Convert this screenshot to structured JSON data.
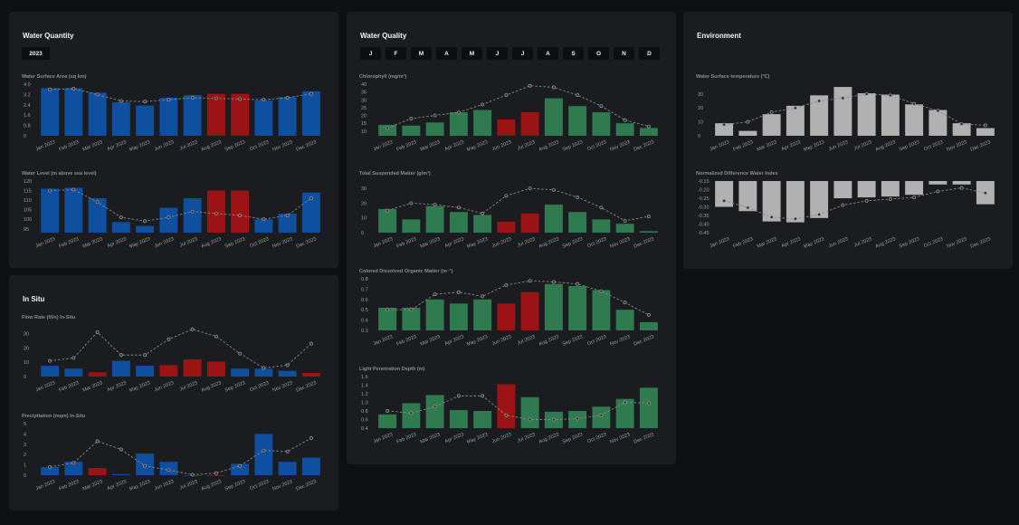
{
  "panels": {
    "water_quantity": {
      "title": "Water Quantity",
      "year": "2023"
    },
    "water_quality": {
      "title": "Water Quality",
      "months": [
        "J",
        "F",
        "M",
        "A",
        "M",
        "J",
        "J",
        "A",
        "S",
        "O",
        "N",
        "D"
      ]
    },
    "environment": {
      "title": "Environment"
    },
    "in_situ": {
      "title": "In Situ"
    }
  },
  "colors": {
    "blue": "#0e4fa0",
    "red": "#9b1414",
    "green": "#2f7b4f",
    "gray": "#b1b1b1",
    "line": "#8a8a8a"
  },
  "chart_data": [
    {
      "id": "surface_area",
      "type": "bar",
      "title": "Water Surface Area (sq km)",
      "categories": [
        "Jan 2023",
        "Feb 2023",
        "Mar 2023",
        "Apr 2023",
        "May 2023",
        "Jun 2023",
        "Jul 2023",
        "Aug 2023",
        "Sep 2023",
        "Oct 2023",
        "Nov 2023",
        "Dec 2023"
      ],
      "values": [
        3.7,
        3.7,
        3.35,
        2.6,
        2.35,
        2.95,
        3.15,
        3.25,
        3.25,
        2.75,
        3.0,
        3.45
      ],
      "trend": [
        3.6,
        3.65,
        3.2,
        2.7,
        2.65,
        2.8,
        2.95,
        2.9,
        2.85,
        2.8,
        2.95,
        3.25
      ],
      "highlight": [
        7,
        8
      ],
      "yticks": [
        0,
        0.8,
        1.6,
        2.4,
        3.2,
        4.0
      ],
      "ytick_labels": [
        "0",
        "0.8",
        "1.6",
        "2.4",
        "3.2",
        "4.0"
      ],
      "ylim": [
        0,
        4.0
      ]
    },
    {
      "id": "water_level",
      "type": "bar",
      "title": "Water Level (m above sea level)",
      "categories": [
        "Jan 2023",
        "Feb 2023",
        "Mar 2023",
        "Apr 2023",
        "May 2023",
        "Jun 2023",
        "Jul 2023",
        "Aug 2023",
        "Sep 2023",
        "Oct 2023",
        "Nov 2023",
        "Dec 2023"
      ],
      "values": [
        116,
        116.5,
        111,
        98.5,
        96.5,
        106,
        111,
        115,
        115,
        100,
        103,
        114
      ],
      "trend": [
        115,
        115.5,
        109,
        101,
        99,
        101,
        104,
        103,
        102,
        100,
        102,
        111
      ],
      "highlight": [
        7,
        8
      ],
      "yticks": [
        95,
        100,
        105,
        110,
        115,
        120
      ],
      "ytick_labels": [
        "95",
        "100",
        "105",
        "110",
        "115",
        "120"
      ],
      "ylim": [
        93,
        120
      ]
    },
    {
      "id": "chlorophyll",
      "type": "bar",
      "title": "Chlorophyll (mg/m³)",
      "categories": [
        "Jan 2023",
        "Feb 2023",
        "Mar 2023",
        "Apr 2023",
        "May 2023",
        "Jun 2023",
        "Jul 2023",
        "Aug 2023",
        "Sep 2023",
        "Oct 2023",
        "Nov 2023",
        "Dec 2023"
      ],
      "values": [
        14,
        13.5,
        15.5,
        22,
        23.5,
        17.5,
        22,
        31,
        26,
        22,
        15,
        12
      ],
      "trend": [
        12,
        18,
        20,
        22,
        27,
        33,
        39,
        38,
        33,
        26,
        17,
        13
      ],
      "highlight": [
        5,
        6
      ],
      "yticks": [
        10,
        15,
        20,
        25,
        30,
        35,
        40
      ],
      "ytick_labels": [
        "10",
        "15",
        "20",
        "25",
        "30",
        "35",
        "40"
      ],
      "ylim": [
        7,
        40
      ]
    },
    {
      "id": "tsm",
      "type": "bar",
      "title": "Total Suspended Matter (g/m³)",
      "categories": [
        "Jan 2023",
        "Feb 2023",
        "Mar 2023",
        "Apr 2023",
        "May 2023",
        "Jun 2023",
        "Jul 2023",
        "Aug 2023",
        "Sep 2023",
        "Oct 2023",
        "Nov 2023",
        "Dec 2023"
      ],
      "values": [
        16,
        9,
        18,
        14,
        12,
        7.5,
        13,
        19,
        14,
        9,
        6,
        1
      ],
      "trend": [
        15,
        20,
        19,
        17,
        13,
        25,
        30,
        29,
        24,
        17,
        8,
        11
      ],
      "highlight": [
        5,
        6
      ],
      "yticks": [
        0,
        10,
        20,
        30
      ],
      "ytick_labels": [
        "0",
        "10",
        "20",
        "30"
      ],
      "ylim": [
        0,
        35
      ]
    },
    {
      "id": "cdom",
      "type": "bar",
      "title": "Colored Dissolved Organic Matter (m⁻¹)",
      "categories": [
        "Jan 2023",
        "Feb 2023",
        "Mar 2023",
        "Apr 2023",
        "May 2023",
        "Jun 2023",
        "Jul 2023",
        "Aug 2023",
        "Sep 2023",
        "Oct 2023",
        "Nov 2023",
        "Dec 2023"
      ],
      "values": [
        0.52,
        0.52,
        0.6,
        0.56,
        0.6,
        0.56,
        0.67,
        0.75,
        0.73,
        0.69,
        0.5,
        0.38
      ],
      "trend": [
        0.5,
        0.5,
        0.65,
        0.67,
        0.63,
        0.74,
        0.78,
        0.77,
        0.75,
        0.68,
        0.57,
        0.45
      ],
      "highlight": [
        5,
        6
      ],
      "yticks": [
        0.3,
        0.4,
        0.5,
        0.6,
        0.7,
        0.8
      ],
      "ytick_labels": [
        "0.3",
        "0.4",
        "0.5",
        "0.6",
        "0.7",
        "0.8"
      ],
      "ylim": [
        0.3,
        0.8
      ]
    },
    {
      "id": "light_depth",
      "type": "bar",
      "title": "Light Penetration Depth (m)",
      "categories": [
        "Jan 2023",
        "Feb 2023",
        "Mar 2023",
        "Apr 2023",
        "May 2023",
        "Jun 2023",
        "Jul 2023",
        "Aug 2023",
        "Sep 2023",
        "Oct 2023",
        "Nov 2023",
        "Dec 2023"
      ],
      "values": [
        0.72,
        0.98,
        1.17,
        0.82,
        0.8,
        1.42,
        1.12,
        0.78,
        0.8,
        0.9,
        1.08,
        1.34
      ],
      "trend": [
        0.8,
        0.75,
        0.9,
        1.15,
        1.15,
        0.7,
        0.6,
        0.6,
        0.62,
        0.7,
        1.0,
        0.98
      ],
      "highlight": [
        5
      ],
      "yticks": [
        0.4,
        0.6,
        0.8,
        1.0,
        1.2,
        1.4,
        1.6
      ],
      "ytick_labels": [
        "0.4",
        "0.6",
        "0.8",
        "1.0",
        "1.2",
        "1.4",
        "1.6"
      ],
      "ylim": [
        0.4,
        1.6
      ]
    },
    {
      "id": "surface_temp",
      "type": "bar",
      "title": "Water Surface temperature (°C)",
      "categories": [
        "Jan 2023",
        "Feb 2023",
        "Mar 2023",
        "Apr 2023",
        "May 2023",
        "Jun 2023",
        "Jul 2023",
        "Aug 2023",
        "Sep 2023",
        "Oct 2023",
        "Nov 2023",
        "Dec 2023"
      ],
      "values": [
        9,
        3.5,
        15.5,
        21.5,
        29,
        35,
        30.5,
        29.5,
        22.5,
        18.5,
        9,
        5.5
      ],
      "trend": [
        8,
        10,
        17,
        20,
        25,
        27,
        30,
        29,
        23,
        18,
        8.5,
        7.5
      ],
      "highlight": [],
      "yticks": [
        0,
        10,
        20,
        30
      ],
      "ytick_labels": [
        "0",
        "10",
        "20",
        "30"
      ],
      "ylim": [
        0,
        37
      ]
    },
    {
      "id": "ndwi",
      "type": "bar",
      "title": "Normalized Difference Water Index",
      "categories": [
        "Jan 2023",
        "Feb 2023",
        "Mar 2023",
        "Apr 2023",
        "May 2023",
        "Jun 2023",
        "Jul 2023",
        "Aug 2023",
        "Sep 2023",
        "Oct 2023",
        "Nov 2023",
        "Dec 2023"
      ],
      "values": [
        -0.3,
        -0.325,
        -0.385,
        -0.39,
        -0.365,
        -0.25,
        -0.245,
        -0.24,
        -0.23,
        -0.17,
        -0.17,
        -0.285
      ],
      "trend": [
        -0.265,
        -0.305,
        -0.36,
        -0.37,
        -0.345,
        -0.29,
        -0.265,
        -0.255,
        -0.245,
        -0.21,
        -0.19,
        -0.22
      ],
      "highlight": [],
      "yticks": [
        -0.15,
        -0.2,
        -0.25,
        -0.3,
        -0.35,
        -0.4,
        -0.45
      ],
      "ytick_labels": [
        "-0.15",
        "-0.20",
        "-0.25",
        "-0.30",
        "-0.35",
        "-0.40",
        "-0.45"
      ],
      "ylim": [
        -0.45,
        -0.15
      ]
    },
    {
      "id": "flow_rate",
      "type": "bar",
      "title": "Flow Rate (ltl/s) In-Situ",
      "categories": [
        "Jan 2023",
        "Feb 2023",
        "Mar 2023",
        "Apr 2023",
        "May 2023",
        "Jun 2023",
        "Jul 2023",
        "Aug 2023",
        "Sep 2023",
        "Oct 2023",
        "Nov 2023",
        "Dec 2023"
      ],
      "values": [
        7.5,
        5.5,
        3,
        11,
        7.5,
        8,
        12,
        10.5,
        5.5,
        5.5,
        4,
        2.5
      ],
      "trend": [
        11,
        13,
        31,
        15,
        15,
        26,
        33,
        28,
        16,
        6,
        8,
        23
      ],
      "highlight": [
        2,
        5,
        6,
        7,
        11
      ],
      "yticks": [
        0,
        10,
        20,
        30
      ],
      "ytick_labels": [
        "0",
        "10",
        "20",
        "30"
      ],
      "ylim": [
        0,
        36
      ]
    },
    {
      "id": "precipitation",
      "type": "bar",
      "title": "Precipitation (mqm) In-Situ",
      "categories": [
        "Jan 2023",
        "Feb 2023",
        "Mar 2023",
        "Apr 2023",
        "May 2023",
        "Jun 2023",
        "Jul 2023",
        "Aug 2023",
        "Sep 2023",
        "Oct 2023",
        "Nov 2023",
        "Dec 2023"
      ],
      "values": [
        0.8,
        1.3,
        0.7,
        0.1,
        2.1,
        1.3,
        0,
        0,
        1.1,
        4.0,
        1.3,
        1.7
      ],
      "trend": [
        0.8,
        1.2,
        3.3,
        2.5,
        0.9,
        0.5,
        0.05,
        0.2,
        0.9,
        2.4,
        2.3,
        3.6
      ],
      "highlight": [
        2
      ],
      "yticks": [
        0,
        1,
        2,
        3,
        4,
        5
      ],
      "ytick_labels": [
        "0",
        "1",
        "2",
        "3",
        "4",
        "5"
      ],
      "ylim": [
        0,
        5
      ]
    }
  ]
}
